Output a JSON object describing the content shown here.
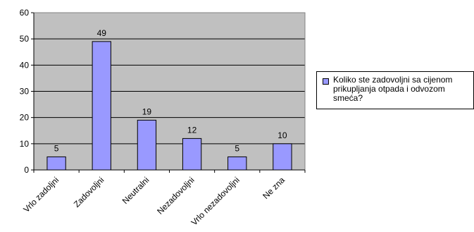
{
  "chart_data": {
    "type": "bar",
    "categories": [
      "Vrlo zadoljni",
      "Zadovoljni",
      "Neutralni",
      "Nezadovoljni",
      "Vrlo nezadovoljni",
      "Ne zna"
    ],
    "series": [
      {
        "name": "Koliko ste zadovoljni sa cijenom prikupljanja otpada i odvozom smeća?",
        "values": [
          5,
          49,
          19,
          12,
          5,
          10
        ]
      }
    ],
    "ylim": [
      0,
      60
    ],
    "yticks": [
      0,
      10,
      20,
      30,
      40,
      50,
      60
    ],
    "grid": true,
    "legend_position": "right",
    "colors": {
      "bar": "#9999ff",
      "plot_background": "#c0c0c0",
      "border": "#000000"
    }
  }
}
